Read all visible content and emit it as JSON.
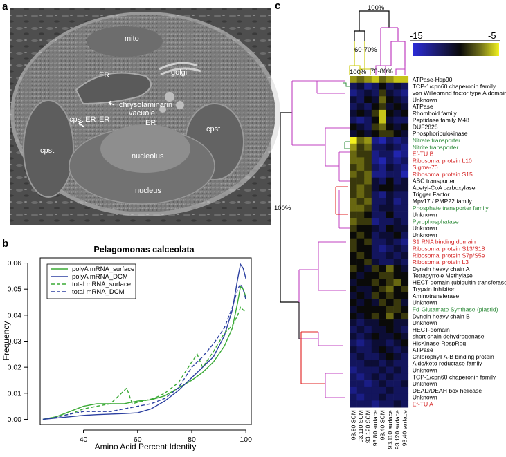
{
  "panels": {
    "a": {
      "label": "a",
      "annotations": [
        "mito",
        "ER",
        "golgi",
        "chrysolaminarin",
        "vacuole",
        "ER",
        "cpst ER",
        "ER",
        "cpst",
        "cpst",
        "nucleolus",
        "nucleus"
      ]
    },
    "b": {
      "label": "b"
    },
    "c": {
      "label": "c"
    }
  },
  "chart_data": {
    "type": "line",
    "title": "Pelagomonas calceolata",
    "xlabel": "Amino Acid Percent Identity",
    "ylabel": "Frequency",
    "xlim": [
      24,
      102
    ],
    "ylim": [
      -0.002,
      0.062
    ],
    "xticks": [
      40,
      60,
      80,
      100
    ],
    "yticks": [
      0.0,
      0.01,
      0.02,
      0.03,
      0.04,
      0.05,
      0.06
    ],
    "ytick_labels": [
      "0.00",
      "0.01",
      "0.02",
      "0.03",
      "0.04",
      "0.05",
      "0.06"
    ],
    "legend_position": "top-left",
    "series": [
      {
        "name": "polyA mRNA_surface",
        "color": "#3aaa35",
        "dash": false,
        "points": [
          [
            25,
            0.0
          ],
          [
            30,
            0.001
          ],
          [
            35,
            0.003
          ],
          [
            40,
            0.005
          ],
          [
            45,
            0.006
          ],
          [
            50,
            0.006
          ],
          [
            55,
            0.006
          ],
          [
            60,
            0.007
          ],
          [
            65,
            0.0075
          ],
          [
            70,
            0.009
          ],
          [
            75,
            0.012
          ],
          [
            80,
            0.015
          ],
          [
            84,
            0.018
          ],
          [
            88,
            0.022
          ],
          [
            92,
            0.028
          ],
          [
            95,
            0.035
          ],
          [
            97,
            0.045
          ],
          [
            98,
            0.051
          ],
          [
            99,
            0.05
          ],
          [
            100,
            0.047
          ]
        ]
      },
      {
        "name": "polyA mRNA_DCM",
        "color": "#2b3fa0",
        "dash": false,
        "points": [
          [
            25,
            0.0
          ],
          [
            30,
            0.0005
          ],
          [
            35,
            0.001
          ],
          [
            40,
            0.0015
          ],
          [
            45,
            0.0018
          ],
          [
            50,
            0.002
          ],
          [
            55,
            0.0022
          ],
          [
            60,
            0.0025
          ],
          [
            65,
            0.004
          ],
          [
            70,
            0.007
          ],
          [
            75,
            0.011
          ],
          [
            80,
            0.016
          ],
          [
            84,
            0.02
          ],
          [
            88,
            0.024
          ],
          [
            92,
            0.032
          ],
          [
            95,
            0.042
          ],
          [
            97,
            0.054
          ],
          [
            98,
            0.0595
          ],
          [
            99,
            0.058
          ],
          [
            100,
            0.054
          ]
        ]
      },
      {
        "name": "total mRNA_surface",
        "color": "#3aaa35",
        "dash": true,
        "points": [
          [
            25,
            0.0
          ],
          [
            30,
            0.001
          ],
          [
            35,
            0.002
          ],
          [
            40,
            0.004
          ],
          [
            45,
            0.005
          ],
          [
            50,
            0.006
          ],
          [
            53,
            0.009
          ],
          [
            56,
            0.012
          ],
          [
            58,
            0.006
          ],
          [
            62,
            0.007
          ],
          [
            66,
            0.008
          ],
          [
            70,
            0.01
          ],
          [
            75,
            0.014
          ],
          [
            80,
            0.022
          ],
          [
            82,
            0.025
          ],
          [
            84,
            0.02
          ],
          [
            88,
            0.026
          ],
          [
            92,
            0.033
          ],
          [
            95,
            0.036
          ],
          [
            97,
            0.04
          ],
          [
            98,
            0.043
          ],
          [
            99,
            0.042
          ],
          [
            100,
            0.041
          ]
        ]
      },
      {
        "name": "total mRNA_DCM",
        "color": "#2b3fa0",
        "dash": true,
        "points": [
          [
            25,
            0.0
          ],
          [
            30,
            0.0008
          ],
          [
            35,
            0.002
          ],
          [
            40,
            0.003
          ],
          [
            45,
            0.003
          ],
          [
            50,
            0.003
          ],
          [
            55,
            0.004
          ],
          [
            60,
            0.005
          ],
          [
            65,
            0.006
          ],
          [
            70,
            0.008
          ],
          [
            75,
            0.012
          ],
          [
            80,
            0.02
          ],
          [
            84,
            0.024
          ],
          [
            88,
            0.029
          ],
          [
            92,
            0.035
          ],
          [
            95,
            0.043
          ],
          [
            97,
            0.05
          ],
          [
            98,
            0.052
          ],
          [
            99,
            0.05
          ],
          [
            100,
            0.046
          ]
        ]
      }
    ]
  },
  "heatmap": {
    "scale_min": "-15",
    "scale_max": "-5",
    "top_pct": "100%",
    "pct_6070": "60-70%",
    "pct_100_small": "100%",
    "pct_7080": "70-80%",
    "side_pct": "100%",
    "columns": [
      "93.80 SCM",
      "93.110 SCM",
      "93.120 SCM",
      "93.80 surface",
      "93.40 SCM",
      "93.110 surface",
      "93.120 surface",
      "93.40 surface"
    ],
    "rows": [
      {
        "label": "ATPase-Hsp90",
        "color": "#000000"
      },
      {
        "label": "TCP-1/cpn60 chaperonin family",
        "color": "#000000"
      },
      {
        "label": "von Willebrand factor type A domain",
        "color": "#000000"
      },
      {
        "label": "Unknown",
        "color": "#000000"
      },
      {
        "label": "ATPase",
        "color": "#000000"
      },
      {
        "label": "Rhomboid family",
        "color": "#000000"
      },
      {
        "label": "Peptidase family M48",
        "color": "#000000"
      },
      {
        "label": "DUF2828",
        "color": "#000000"
      },
      {
        "label": "Phosphoribulokinase",
        "color": "#000000"
      },
      {
        "label": "Nitrate transporter",
        "color": "#2e8b3a"
      },
      {
        "label": "Nitrite transporter",
        "color": "#2e8b3a"
      },
      {
        "label": "Ef-TU B",
        "color": "#d42020"
      },
      {
        "label": "Ribosomal protein L10",
        "color": "#d42020"
      },
      {
        "label": "Sigma-70",
        "color": "#d42020"
      },
      {
        "label": "Ribosomal protein S15",
        "color": "#d42020"
      },
      {
        "label": "ABC transporter",
        "color": "#000000"
      },
      {
        "label": "Acetyl-CoA carboxylase",
        "color": "#000000"
      },
      {
        "label": "Trigger Factor",
        "color": "#000000"
      },
      {
        "label": "Mpv17 / PMP22 family",
        "color": "#000000"
      },
      {
        "label": "Phosphate transporter family",
        "color": "#2e8b3a"
      },
      {
        "label": "Unknown",
        "color": "#000000"
      },
      {
        "label": "Pyrophosphatase",
        "color": "#2e8b3a"
      },
      {
        "label": "Unknown",
        "color": "#000000"
      },
      {
        "label": "Unknown",
        "color": "#000000"
      },
      {
        "label": "S1 RNA binding domain",
        "color": "#d42020"
      },
      {
        "label": "Ribosomal protein S13/S18",
        "color": "#d42020"
      },
      {
        "label": "Ribosomal protein S7p/S5e",
        "color": "#d42020"
      },
      {
        "label": "Ribosomal protein L3",
        "color": "#d42020"
      },
      {
        "label": "Dynein heavy chain A",
        "color": "#000000"
      },
      {
        "label": "Tetrapyrrole Methylase",
        "color": "#000000"
      },
      {
        "label": "HECT-domain (ubiquitin-transferase)",
        "color": "#000000"
      },
      {
        "label": "Trypsin Inhibitor",
        "color": "#000000"
      },
      {
        "label": "Aminotransferase",
        "color": "#000000"
      },
      {
        "label": "Unknown",
        "color": "#000000"
      },
      {
        "label": "Fd-Glutamate Synthase (plastid)",
        "color": "#2e8b3a"
      },
      {
        "label": "Dynein heavy chain B",
        "color": "#000000"
      },
      {
        "label": "Unknown",
        "color": "#000000"
      },
      {
        "label": "HECT-domain",
        "color": "#000000"
      },
      {
        "label": "short chain dehydrogenase",
        "color": "#000000"
      },
      {
        "label": "HisKinase-RespReg",
        "color": "#000000"
      },
      {
        "label": "ATPase",
        "color": "#000000"
      },
      {
        "label": "Chlorophyll A-B binding protein",
        "color": "#000000"
      },
      {
        "label": "Aldo/keto reductase family",
        "color": "#000000"
      },
      {
        "label": "Unknown",
        "color": "#000000"
      },
      {
        "label": "TCP-1/cpn60 chaperonin family",
        "color": "#000000"
      },
      {
        "label": "Unknown",
        "color": "#000000"
      },
      {
        "label": "DEAD/DEAH box helicase",
        "color": "#000000"
      },
      {
        "label": "Unknown",
        "color": "#000000"
      },
      {
        "label": "Ef-TU A",
        "color": "#d42020"
      }
    ],
    "values": [
      [
        -7,
        -8,
        -7,
        -6,
        -8,
        -7,
        -6,
        -6
      ],
      [
        -12,
        -11,
        -13,
        -12,
        -10,
        -12,
        -11,
        -12
      ],
      [
        -13,
        -12,
        -11,
        -12,
        -9,
        -11,
        -12,
        -13
      ],
      [
        -11,
        -12,
        -10,
        -11,
        -8,
        -10,
        -11,
        -12
      ],
      [
        -12,
        -11,
        -12,
        -10,
        -9,
        -11,
        -10,
        -11
      ],
      [
        -11,
        -10,
        -11,
        -9,
        -6,
        -10,
        -11,
        -10
      ],
      [
        -12,
        -13,
        -12,
        -10,
        -6,
        -11,
        -12,
        -12
      ],
      [
        -10,
        -11,
        -12,
        -9,
        -8,
        -10,
        -11,
        -10
      ],
      [
        -11,
        -10,
        -11,
        -10,
        -9,
        -9,
        -10,
        -11
      ],
      [
        -5,
        -8,
        -7,
        -13,
        -14,
        -12,
        -13,
        -12
      ],
      [
        -7,
        -9,
        -8,
        -12,
        -12,
        -11,
        -12,
        -13
      ],
      [
        -8,
        -9,
        -9,
        -13,
        -12,
        -12,
        -14,
        -13
      ],
      [
        -8,
        -8,
        -9,
        -13,
        -14,
        -12,
        -13,
        -12
      ],
      [
        -9,
        -8,
        -9,
        -12,
        -13,
        -11,
        -12,
        -13
      ],
      [
        -8,
        -9,
        -8,
        -13,
        -13,
        -12,
        -12,
        -14
      ],
      [
        -9,
        -9,
        -8,
        -11,
        -12,
        -10,
        -12,
        -11
      ],
      [
        -9,
        -8,
        -9,
        -11,
        -10,
        -10,
        -11,
        -11
      ],
      [
        -9,
        -8,
        -9,
        -12,
        -13,
        -11,
        -12,
        -12
      ],
      [
        -8,
        -9,
        -8,
        -12,
        -12,
        -11,
        -13,
        -12
      ],
      [
        -8,
        -8,
        -9,
        -12,
        -11,
        -11,
        -12,
        -12
      ],
      [
        -9,
        -9,
        -10,
        -12,
        -12,
        -10,
        -12,
        -12
      ],
      [
        -8,
        -9,
        -9,
        -13,
        -12,
        -12,
        -11,
        -12
      ],
      [
        -9,
        -10,
        -10,
        -11,
        -12,
        -10,
        -11,
        -11
      ],
      [
        -10,
        -9,
        -10,
        -12,
        -11,
        -11,
        -10,
        -12
      ],
      [
        -9,
        -10,
        -9,
        -12,
        -12,
        -11,
        -12,
        -13
      ],
      [
        -9,
        -10,
        -10,
        -12,
        -13,
        -12,
        -11,
        -12
      ],
      [
        -10,
        -9,
        -10,
        -12,
        -12,
        -11,
        -12,
        -11
      ],
      [
        -10,
        -10,
        -9,
        -11,
        -12,
        -12,
        -11,
        -12
      ],
      [
        -9,
        -10,
        -11,
        -9,
        -10,
        -8,
        -10,
        -11
      ],
      [
        -10,
        -11,
        -10,
        -10,
        -9,
        -9,
        -10,
        -10
      ],
      [
        -11,
        -10,
        -10,
        -9,
        -10,
        -9,
        -8,
        -10
      ],
      [
        -10,
        -11,
        -11,
        -10,
        -9,
        -8,
        -10,
        -9
      ],
      [
        -11,
        -10,
        -11,
        -9,
        -10,
        -9,
        -10,
        -10
      ],
      [
        -10,
        -11,
        -10,
        -11,
        -9,
        -10,
        -9,
        -11
      ],
      [
        -11,
        -10,
        -10,
        -10,
        -10,
        -9,
        -9,
        -10
      ],
      [
        -10,
        -11,
        -10,
        -9,
        -10,
        -8,
        -10,
        -9
      ],
      [
        -11,
        -12,
        -11,
        -11,
        -10,
        -10,
        -11,
        -11
      ],
      [
        -12,
        -11,
        -12,
        -11,
        -11,
        -10,
        -11,
        -12
      ],
      [
        -11,
        -12,
        -11,
        -10,
        -11,
        -11,
        -10,
        -11
      ],
      [
        -12,
        -13,
        -12,
        -11,
        -11,
        -12,
        -11,
        -10
      ],
      [
        -11,
        -12,
        -12,
        -11,
        -10,
        -11,
        -12,
        -11
      ],
      [
        -12,
        -11,
        -12,
        -12,
        -11,
        -10,
        -11,
        -12
      ],
      [
        -12,
        -12,
        -11,
        -11,
        -12,
        -11,
        -12,
        -12
      ],
      [
        -13,
        -12,
        -12,
        -12,
        -11,
        -12,
        -11,
        -12
      ],
      [
        -12,
        -13,
        -12,
        -11,
        -12,
        -11,
        -12,
        -12
      ],
      [
        -12,
        -12,
        -13,
        -12,
        -11,
        -12,
        -12,
        -11
      ],
      [
        -13,
        -12,
        -12,
        -12,
        -12,
        -11,
        -12,
        -12
      ],
      [
        -12,
        -13,
        -12,
        -12,
        -11,
        -12,
        -12,
        -12
      ],
      [
        -12,
        -12,
        -12,
        -13,
        -12,
        -12,
        -11,
        -12
      ]
    ]
  }
}
